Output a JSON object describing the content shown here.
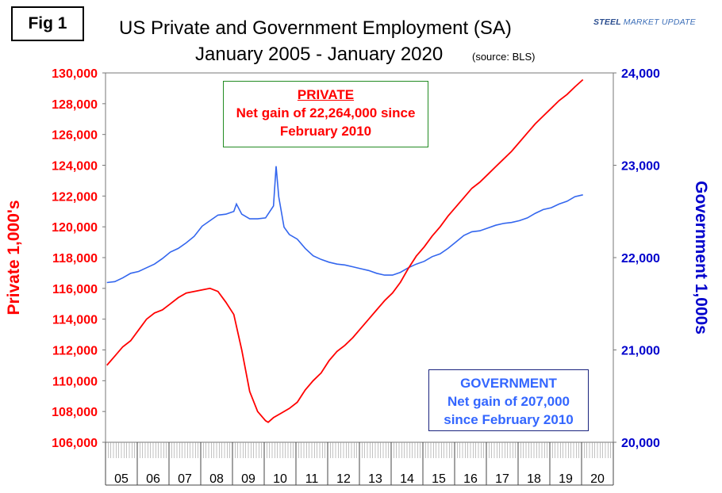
{
  "figure_label": "Fig 1",
  "title_line1": "US Private and Government Employment (SA)",
  "title_line2": "January 2005 - January 2020",
  "title_source": "(source: BLS)",
  "logo": {
    "bold": "STEEL",
    "rest": "MARKET UPDATE"
  },
  "chart_data": {
    "type": "line",
    "title": "US Private and Government Employment (SA) January 2005 - January 2020 (source: BLS)",
    "ylabel_left": "Private 1,000's",
    "ylabel_right": "Government 1,000s",
    "ylim_left": [
      106000,
      130000
    ],
    "ylim_right": [
      20000,
      24000
    ],
    "y_left_ticks": [
      "106,000",
      "108,000",
      "110,000",
      "112,000",
      "114,000",
      "116,000",
      "118,000",
      "120,000",
      "122,000",
      "124,000",
      "126,000",
      "128,000",
      "130,000"
    ],
    "y_right_ticks": [
      "20,000",
      "21,000",
      "22,000",
      "23,000",
      "24,000"
    ],
    "x_tick_labels": [
      "05",
      "06",
      "07",
      "08",
      "09",
      "10",
      "11",
      "12",
      "13",
      "14",
      "15",
      "16",
      "17",
      "18",
      "19",
      "20"
    ],
    "x_range": [
      "2005-01",
      "2020-12"
    ],
    "colors": {
      "private": "#ff0000",
      "government": "#3366ee"
    },
    "series": [
      {
        "name": "PRIVATE",
        "axis": "left",
        "points": [
          [
            "2005-01",
            111000
          ],
          [
            "2005-04",
            111600
          ],
          [
            "2005-07",
            112200
          ],
          [
            "2005-10",
            112600
          ],
          [
            "2006-01",
            113300
          ],
          [
            "2006-04",
            114000
          ],
          [
            "2006-07",
            114400
          ],
          [
            "2006-10",
            114600
          ],
          [
            "2007-01",
            115000
          ],
          [
            "2007-04",
            115400
          ],
          [
            "2007-07",
            115700
          ],
          [
            "2007-10",
            115800
          ],
          [
            "2008-01",
            115900
          ],
          [
            "2008-04",
            116000
          ],
          [
            "2008-07",
            115800
          ],
          [
            "2008-10",
            115100
          ],
          [
            "2009-01",
            114300
          ],
          [
            "2009-04",
            112000
          ],
          [
            "2009-07",
            109300
          ],
          [
            "2009-10",
            108000
          ],
          [
            "2010-01",
            107400
          ],
          [
            "2010-02",
            107300
          ],
          [
            "2010-04",
            107600
          ],
          [
            "2010-07",
            107900
          ],
          [
            "2010-10",
            108200
          ],
          [
            "2011-01",
            108600
          ],
          [
            "2011-04",
            109400
          ],
          [
            "2011-07",
            110000
          ],
          [
            "2011-10",
            110500
          ],
          [
            "2012-01",
            111300
          ],
          [
            "2012-04",
            111900
          ],
          [
            "2012-07",
            112300
          ],
          [
            "2012-10",
            112800
          ],
          [
            "2013-01",
            113400
          ],
          [
            "2013-04",
            114000
          ],
          [
            "2013-07",
            114600
          ],
          [
            "2013-10",
            115200
          ],
          [
            "2014-01",
            115700
          ],
          [
            "2014-04",
            116400
          ],
          [
            "2014-07",
            117300
          ],
          [
            "2014-10",
            118100
          ],
          [
            "2015-01",
            118700
          ],
          [
            "2015-04",
            119400
          ],
          [
            "2015-07",
            120000
          ],
          [
            "2015-10",
            120700
          ],
          [
            "2016-01",
            121300
          ],
          [
            "2016-04",
            121900
          ],
          [
            "2016-07",
            122500
          ],
          [
            "2016-10",
            122900
          ],
          [
            "2017-01",
            123400
          ],
          [
            "2017-04",
            123900
          ],
          [
            "2017-07",
            124400
          ],
          [
            "2017-10",
            124900
          ],
          [
            "2018-01",
            125500
          ],
          [
            "2018-04",
            126100
          ],
          [
            "2018-07",
            126700
          ],
          [
            "2018-10",
            127200
          ],
          [
            "2019-01",
            127700
          ],
          [
            "2019-04",
            128200
          ],
          [
            "2019-07",
            128600
          ],
          [
            "2019-10",
            129100
          ],
          [
            "2020-01",
            129560
          ]
        ]
      },
      {
        "name": "GOVERNMENT",
        "axis": "right",
        "points": [
          [
            "2005-01",
            21730
          ],
          [
            "2005-04",
            21740
          ],
          [
            "2005-07",
            21780
          ],
          [
            "2005-10",
            21830
          ],
          [
            "2006-01",
            21850
          ],
          [
            "2006-04",
            21890
          ],
          [
            "2006-07",
            21930
          ],
          [
            "2006-10",
            21990
          ],
          [
            "2007-01",
            22060
          ],
          [
            "2007-04",
            22100
          ],
          [
            "2007-07",
            22160
          ],
          [
            "2007-10",
            22230
          ],
          [
            "2008-01",
            22340
          ],
          [
            "2008-04",
            22400
          ],
          [
            "2008-07",
            22460
          ],
          [
            "2008-10",
            22470
          ],
          [
            "2009-01",
            22500
          ],
          [
            "2009-02",
            22580
          ],
          [
            "2009-04",
            22470
          ],
          [
            "2009-07",
            22420
          ],
          [
            "2009-10",
            22420
          ],
          [
            "2010-01",
            22430
          ],
          [
            "2010-04",
            22560
          ],
          [
            "2010-05",
            22990
          ],
          [
            "2010-06",
            22660
          ],
          [
            "2010-08",
            22330
          ],
          [
            "2010-10",
            22250
          ],
          [
            "2011-01",
            22200
          ],
          [
            "2011-04",
            22100
          ],
          [
            "2011-07",
            22020
          ],
          [
            "2011-10",
            21980
          ],
          [
            "2012-01",
            21950
          ],
          [
            "2012-04",
            21930
          ],
          [
            "2012-07",
            21920
          ],
          [
            "2012-10",
            21900
          ],
          [
            "2013-01",
            21880
          ],
          [
            "2013-04",
            21860
          ],
          [
            "2013-07",
            21830
          ],
          [
            "2013-10",
            21810
          ],
          [
            "2014-01",
            21810
          ],
          [
            "2014-04",
            21840
          ],
          [
            "2014-07",
            21890
          ],
          [
            "2014-10",
            21930
          ],
          [
            "2015-01",
            21960
          ],
          [
            "2015-04",
            22010
          ],
          [
            "2015-07",
            22040
          ],
          [
            "2015-10",
            22100
          ],
          [
            "2016-01",
            22170
          ],
          [
            "2016-04",
            22240
          ],
          [
            "2016-07",
            22280
          ],
          [
            "2016-10",
            22290
          ],
          [
            "2017-01",
            22320
          ],
          [
            "2017-04",
            22350
          ],
          [
            "2017-07",
            22370
          ],
          [
            "2017-10",
            22380
          ],
          [
            "2018-01",
            22400
          ],
          [
            "2018-04",
            22430
          ],
          [
            "2018-07",
            22480
          ],
          [
            "2018-10",
            22520
          ],
          [
            "2019-01",
            22540
          ],
          [
            "2019-04",
            22580
          ],
          [
            "2019-07",
            22610
          ],
          [
            "2019-10",
            22660
          ],
          [
            "2020-01",
            22680
          ]
        ]
      }
    ],
    "annotations": [
      {
        "series": "PRIVATE",
        "lines": [
          "PRIVATE",
          "Net gain of 22,264,000 since",
          "February 2010"
        ]
      },
      {
        "series": "GOVERNMENT",
        "lines": [
          "GOVERNMENT",
          "Net gain of 207,000",
          "since February 2010"
        ]
      }
    ]
  }
}
